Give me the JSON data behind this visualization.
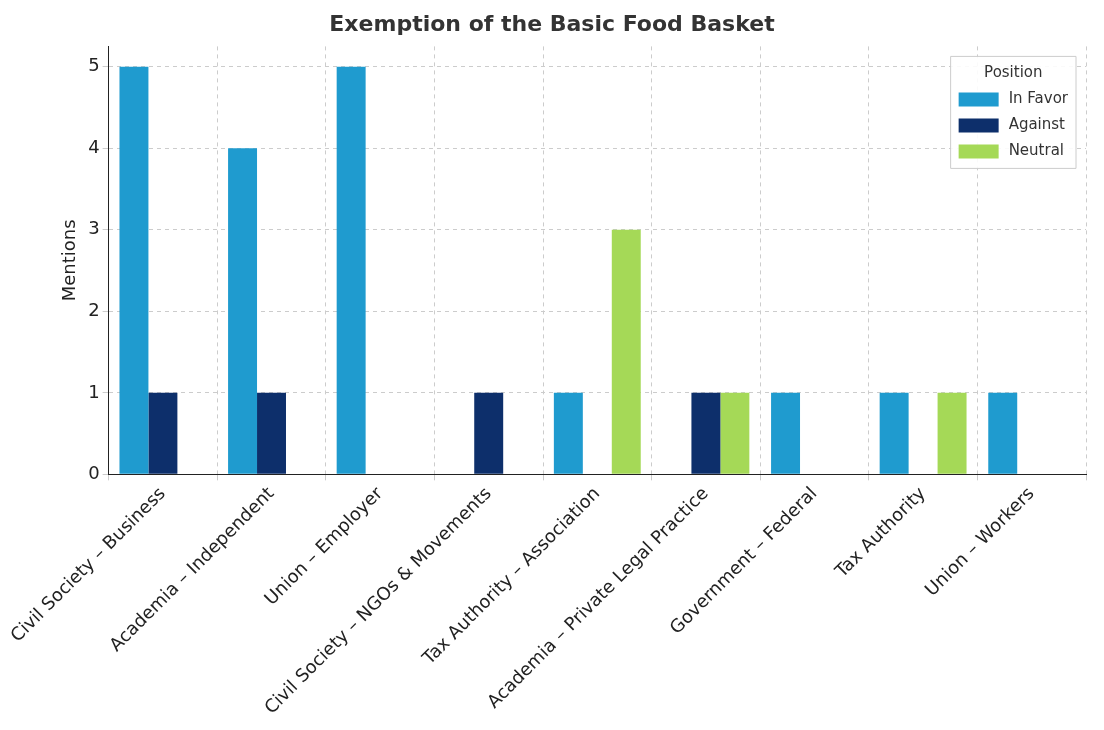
{
  "chart_data": {
    "type": "bar",
    "title": "Exemption of the Basic Food Basket",
    "ylabel": "Mentions",
    "legend_title": "Position",
    "legend": "top right",
    "grid": true,
    "categories": [
      "Civil Society – Business",
      "Academia – Independent",
      "Union – Employer",
      "Civil Society – NGOs & Movements",
      "Tax Authority – Association",
      "Academia – Private Legal Practice",
      "Government – Federal",
      "Tax Authority",
      "Union – Workers"
    ],
    "ylim": [
      0,
      5.25
    ],
    "yticks": [
      0,
      1,
      2,
      3,
      4,
      5
    ],
    "series": [
      {
        "name": "In Favor",
        "color": "#1f9bcf",
        "values": [
          5,
          4,
          5,
          0,
          1,
          0,
          1,
          1,
          1
        ]
      },
      {
        "name": "Against",
        "color": "#0d2f6b",
        "values": [
          1,
          1,
          0,
          1,
          0,
          1,
          0,
          0,
          0
        ]
      },
      {
        "name": "Neutral",
        "color": "#a5d957",
        "values": [
          0,
          0,
          0,
          0,
          3,
          1,
          0,
          1,
          0
        ]
      }
    ]
  }
}
